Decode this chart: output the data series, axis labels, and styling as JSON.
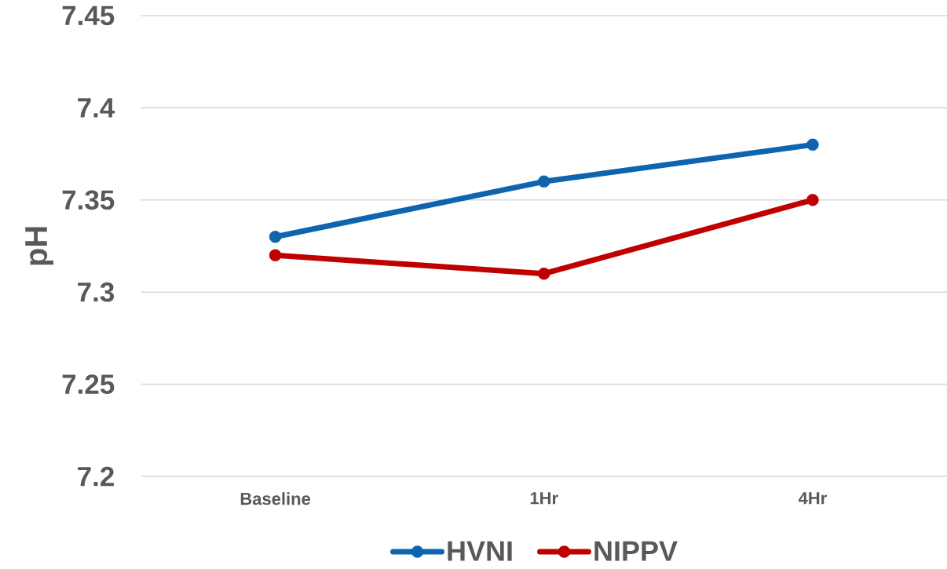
{
  "chart_data": {
    "type": "line",
    "ylabel": "pH",
    "categories": [
      "Baseline",
      "1Hr",
      "4Hr"
    ],
    "series": [
      {
        "name": "HVNI",
        "color": "#0f64b0",
        "values": [
          7.33,
          7.36,
          7.38
        ]
      },
      {
        "name": "NIPPV",
        "color": "#c00000",
        "values": [
          7.32,
          7.31,
          7.35
        ]
      }
    ],
    "ylim": [
      7.2,
      7.45
    ],
    "yticks": [
      7.2,
      7.25,
      7.3,
      7.35,
      7.4,
      7.45
    ],
    "grid": "y",
    "legend": "bottom",
    "marker": "circle",
    "line_style": "solid"
  }
}
